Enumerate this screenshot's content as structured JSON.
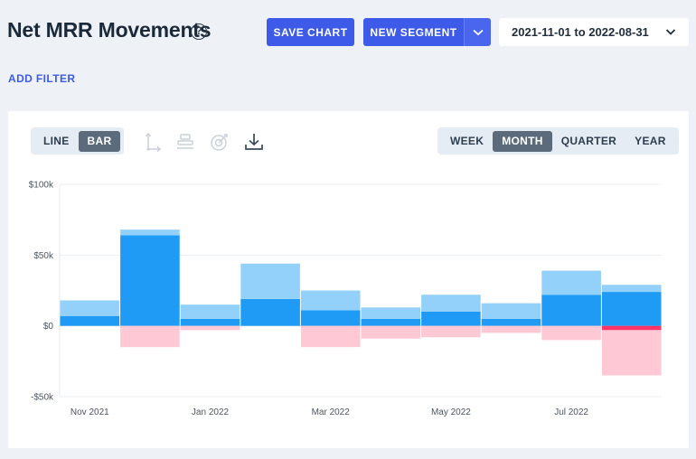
{
  "header": {
    "title": "Net MRR Movements",
    "help_glyph": "?",
    "save_label": "SAVE CHART",
    "segment_label": "NEW SEGMENT",
    "date_range": "2021-11-01 to 2022-08-31"
  },
  "filters": {
    "add_label": "ADD FILTER"
  },
  "chart_type_toggle": {
    "options": [
      "LINE",
      "BAR"
    ],
    "selected": "BAR"
  },
  "period_toggle": {
    "options": [
      "WEEK",
      "MONTH",
      "QUARTER",
      "YEAR"
    ],
    "selected": "MONTH"
  },
  "toolbar": {
    "icons": [
      "axis-icon",
      "stack-icon",
      "target-icon",
      "download-icon"
    ]
  },
  "colors": {
    "primary": "#3d5ae8",
    "positive_dark": "#1f9bf5",
    "positive_light": "#93d1fb",
    "negative_light": "#ffc8d5",
    "negative_dark": "#ff3366"
  },
  "chart_data": {
    "type": "bar",
    "stacked": true,
    "categories": [
      "2021-11",
      "2021-12",
      "2022-01",
      "2022-02",
      "2022-03",
      "2022-04",
      "2022-05",
      "2022-06",
      "2022-07",
      "2022-08"
    ],
    "x_tick_labels": [
      {
        "category": "2021-11",
        "label": "Nov 2021"
      },
      {
        "category": "2022-01",
        "label": "Jan 2022"
      },
      {
        "category": "2022-03",
        "label": "Mar 2022"
      },
      {
        "category": "2022-05",
        "label": "May 2022"
      },
      {
        "category": "2022-07",
        "label": "Jul 2022"
      }
    ],
    "series": [
      {
        "color": "#1f9bf5",
        "values": [
          7000,
          64000,
          5000,
          19000,
          11000,
          5000,
          10000,
          5000,
          22000,
          24000
        ]
      },
      {
        "color": "#93d1fb",
        "values": [
          11000,
          4000,
          10000,
          25000,
          14000,
          8000,
          12000,
          11000,
          17000,
          5000
        ]
      },
      {
        "color": "#ff3366",
        "values": [
          0,
          0,
          0,
          0,
          0,
          0,
          0,
          0,
          0,
          -3000
        ]
      },
      {
        "color": "#ffc8d5",
        "values": [
          0,
          -15000,
          -3000,
          0,
          -15000,
          -9000,
          -8000,
          -5000,
          -10000,
          -32000
        ]
      }
    ],
    "y_ticks": [
      {
        "value": 100000,
        "label": "$100k"
      },
      {
        "value": 50000,
        "label": "$50k"
      },
      {
        "value": 0,
        "label": "$0"
      },
      {
        "value": -50000,
        "label": "-$50k"
      }
    ],
    "ylim": [
      -50000,
      100000
    ],
    "grid": true,
    "legend": "none"
  }
}
